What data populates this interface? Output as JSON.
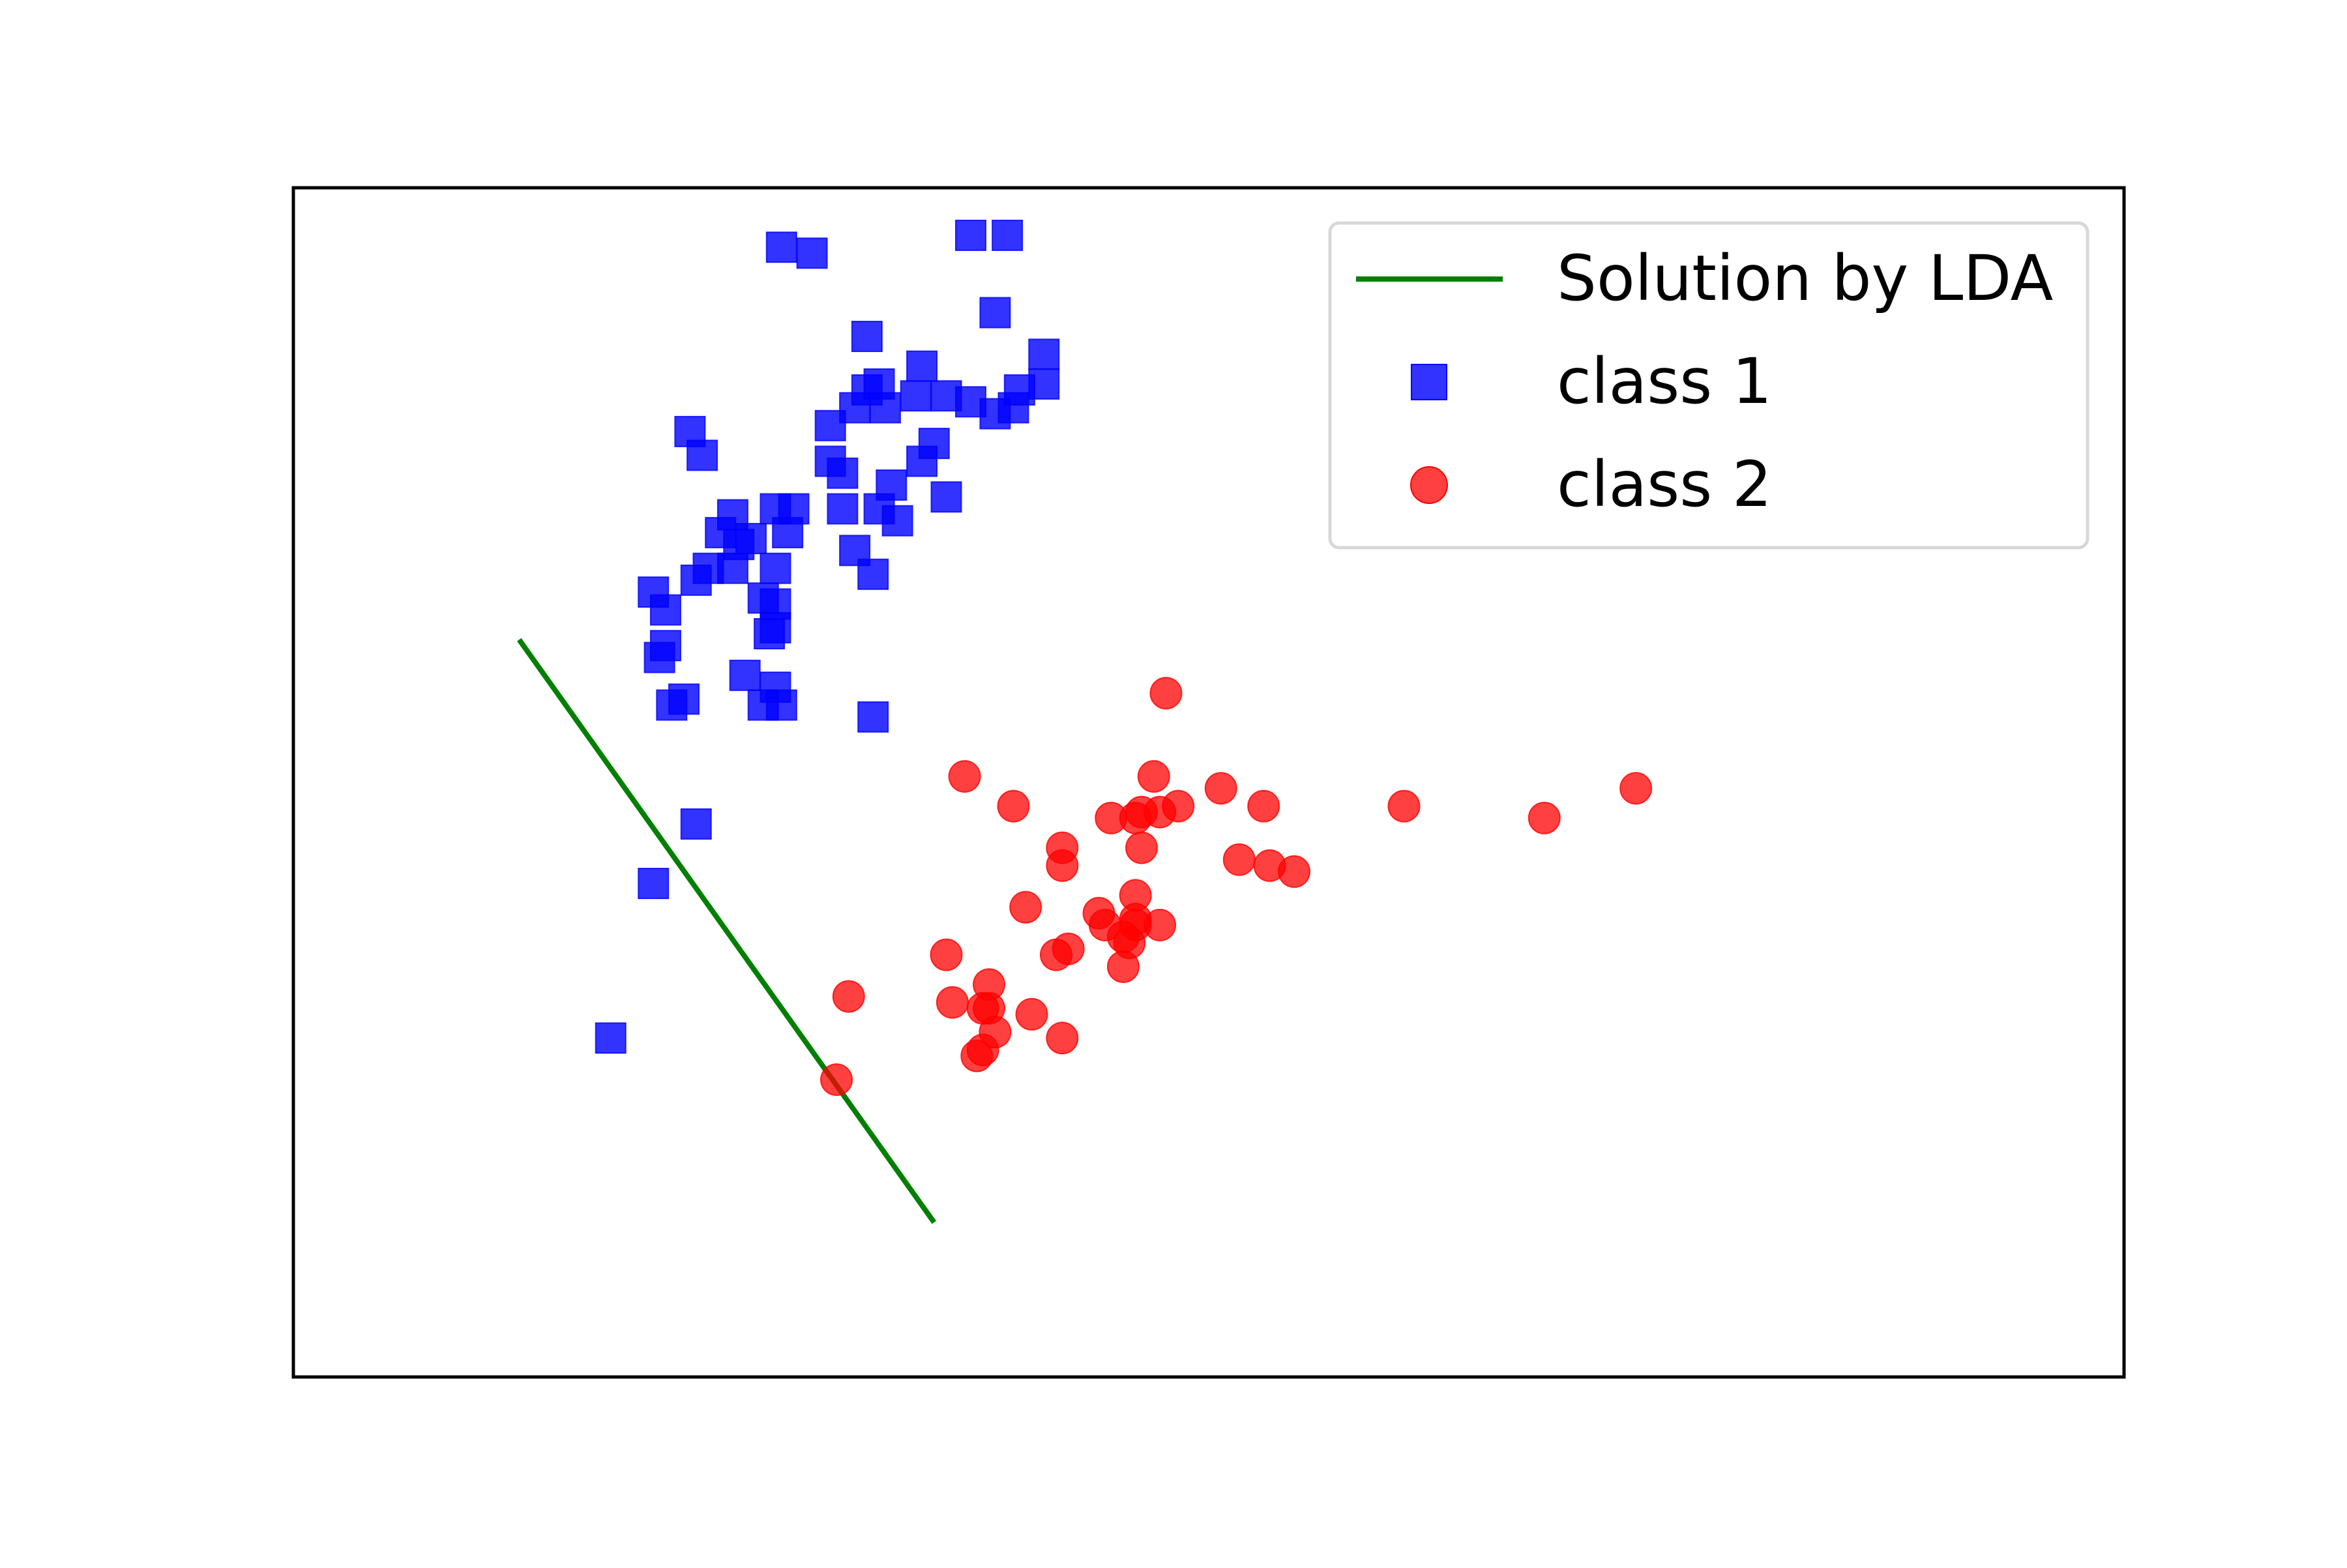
{
  "chart_data": {
    "type": "scatter",
    "title": "",
    "xlabel": "",
    "ylabel": "",
    "xlim": [
      -1,
      2
    ],
    "ylim": [
      -1,
      1
    ],
    "ticks_visible": false,
    "grid": false,
    "legend_position": "top-right",
    "legend": [
      {
        "label": "Solution by LDA",
        "kind": "line",
        "color": "#008000"
      },
      {
        "label": "class 1",
        "kind": "square",
        "color": "#0000ff"
      },
      {
        "label": "class 2",
        "kind": "circle",
        "color": "#ff0000"
      }
    ],
    "series": [
      {
        "name": "class 1",
        "marker": "square",
        "color": "#0000ff",
        "points": [
          [
            -0.2,
            0.9
          ],
          [
            -0.15,
            0.89
          ],
          [
            0.11,
            0.92
          ],
          [
            0.17,
            0.92
          ],
          [
            0.15,
            0.79
          ],
          [
            0.23,
            0.72
          ],
          [
            0.23,
            0.67
          ],
          [
            -0.06,
            0.75
          ],
          [
            0.02,
            0.65
          ],
          [
            0.07,
            0.65
          ],
          [
            0.11,
            0.64
          ],
          [
            0.15,
            0.62
          ],
          [
            0.18,
            0.63
          ],
          [
            0.19,
            0.66
          ],
          [
            -0.06,
            0.66
          ],
          [
            0.03,
            0.7
          ],
          [
            -0.12,
            0.6
          ],
          [
            -0.08,
            0.63
          ],
          [
            -0.03,
            0.63
          ],
          [
            -0.04,
            0.67
          ],
          [
            -0.12,
            0.54
          ],
          [
            -0.1,
            0.52
          ],
          [
            -0.02,
            0.5
          ],
          [
            0.05,
            0.57
          ],
          [
            0.03,
            0.54
          ],
          [
            -0.01,
            0.44
          ],
          [
            -0.04,
            0.46
          ],
          [
            0.07,
            0.48
          ],
          [
            -0.35,
            0.59
          ],
          [
            -0.33,
            0.55
          ],
          [
            -0.21,
            0.46
          ],
          [
            -0.18,
            0.46
          ],
          [
            -0.1,
            0.46
          ],
          [
            -0.08,
            0.39
          ],
          [
            -0.05,
            0.35
          ],
          [
            -0.28,
            0.45
          ],
          [
            -0.32,
            0.36
          ],
          [
            -0.3,
            0.42
          ],
          [
            -0.27,
            0.4
          ],
          [
            -0.34,
            0.34
          ],
          [
            -0.28,
            0.36
          ],
          [
            -0.25,
            0.41
          ],
          [
            -0.21,
            0.36
          ],
          [
            -0.19,
            0.42
          ],
          [
            -0.39,
            0.29
          ],
          [
            -0.41,
            0.32
          ],
          [
            -0.23,
            0.31
          ],
          [
            -0.21,
            0.3
          ],
          [
            -0.39,
            0.23
          ],
          [
            -0.4,
            0.21
          ],
          [
            -0.21,
            0.26
          ],
          [
            -0.22,
            0.25
          ],
          [
            -0.26,
            0.18
          ],
          [
            -0.21,
            0.16
          ],
          [
            -0.38,
            0.13
          ],
          [
            -0.36,
            0.14
          ],
          [
            -0.23,
            0.13
          ],
          [
            -0.2,
            0.13
          ],
          [
            -0.05,
            0.11
          ],
          [
            -0.34,
            -0.07
          ],
          [
            -0.41,
            -0.17
          ],
          [
            -0.48,
            -0.43
          ]
        ]
      },
      {
        "name": "class 2",
        "marker": "circle",
        "color": "#ff0000",
        "points": [
          [
            0.43,
            0.15
          ],
          [
            0.41,
            0.01
          ],
          [
            0.1,
            0.01
          ],
          [
            0.52,
            -0.01
          ],
          [
            0.45,
            -0.04
          ],
          [
            0.42,
            -0.05
          ],
          [
            0.39,
            -0.05
          ],
          [
            0.38,
            -0.06
          ],
          [
            0.34,
            -0.06
          ],
          [
            0.59,
            -0.04
          ],
          [
            0.18,
            -0.04
          ],
          [
            0.82,
            -0.04
          ],
          [
            1.2,
            -0.01
          ],
          [
            1.05,
            -0.06
          ],
          [
            0.39,
            -0.11
          ],
          [
            0.26,
            -0.11
          ],
          [
            0.55,
            -0.13
          ],
          [
            0.6,
            -0.14
          ],
          [
            0.64,
            -0.15
          ],
          [
            0.26,
            -0.14
          ],
          [
            0.38,
            -0.19
          ],
          [
            0.2,
            -0.21
          ],
          [
            0.38,
            -0.23
          ],
          [
            0.38,
            -0.24
          ],
          [
            0.32,
            -0.22
          ],
          [
            0.42,
            -0.24
          ],
          [
            0.33,
            -0.24
          ],
          [
            0.27,
            -0.28
          ],
          [
            0.36,
            -0.26
          ],
          [
            0.25,
            -0.29
          ],
          [
            0.07,
            -0.29
          ],
          [
            0.37,
            -0.27
          ],
          [
            0.36,
            -0.31
          ],
          [
            0.08,
            -0.37
          ],
          [
            0.14,
            -0.34
          ],
          [
            0.13,
            -0.38
          ],
          [
            0.14,
            -0.38
          ],
          [
            0.21,
            -0.39
          ],
          [
            0.26,
            -0.43
          ],
          [
            0.13,
            -0.45
          ],
          [
            0.12,
            -0.46
          ],
          [
            0.15,
            -0.42
          ],
          [
            -0.09,
            -0.36
          ],
          [
            -0.11,
            -0.5
          ]
        ]
      }
    ],
    "line": {
      "name": "Solution by LDA",
      "color": "#008000",
      "points": [
        [
          -0.63,
          0.24
        ],
        [
          0.05,
          -0.74
        ]
      ]
    }
  }
}
